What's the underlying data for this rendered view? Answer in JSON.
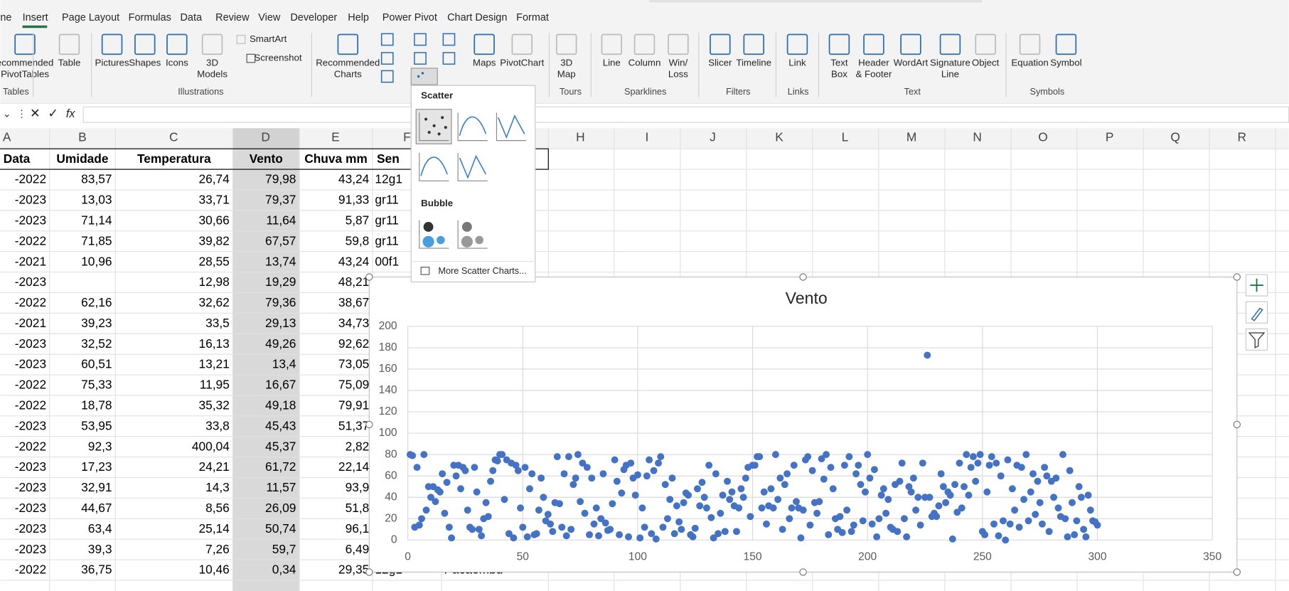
{
  "ribbon": {
    "tabs": [
      "ne",
      "Insert",
      "Page Layout",
      "Formulas",
      "Data",
      "Review",
      "View",
      "Developer",
      "Help",
      "Power Pivot",
      "Chart Design",
      "Format"
    ],
    "buttons": [
      {
        "lines": [
          "ecommended",
          "PivotTables"
        ]
      },
      {
        "lines": [
          "Table"
        ],
        "disabled": true
      },
      {
        "lines": [
          "Pictures"
        ]
      },
      {
        "lines": [
          "Shapes"
        ]
      },
      {
        "lines": [
          "Icons"
        ]
      },
      {
        "lines": [
          "3D",
          "Models"
        ],
        "disabled": true
      },
      {
        "lines": [
          "SmartArt"
        ],
        "disabled": true
      },
      {
        "lines": [
          "Screenshot"
        ]
      },
      {
        "lines": [
          "Recommended",
          "Charts"
        ]
      },
      {
        "lines": [
          "Maps"
        ]
      },
      {
        "lines": [
          "PivotChart"
        ],
        "disabled": true
      },
      {
        "lines": [
          "3D",
          "Map"
        ],
        "disabled": true
      },
      {
        "lines": [
          "Line"
        ],
        "disabled": true
      },
      {
        "lines": [
          "Column"
        ],
        "disabled": true
      },
      {
        "lines": [
          "Win/",
          "Loss"
        ],
        "disabled": true
      },
      {
        "lines": [
          "Slicer"
        ]
      },
      {
        "lines": [
          "Timeline"
        ]
      },
      {
        "lines": [
          "Link"
        ]
      },
      {
        "lines": [
          "Text",
          "Box"
        ]
      },
      {
        "lines": [
          "Header",
          "& Footer"
        ]
      },
      {
        "lines": [
          "WordArt"
        ]
      },
      {
        "lines": [
          "Signature",
          "Line"
        ]
      },
      {
        "lines": [
          "Object"
        ],
        "disabled": true
      },
      {
        "lines": [
          "Equation"
        ],
        "disabled": true
      },
      {
        "lines": [
          "Symbol"
        ]
      }
    ],
    "groups": [
      "Tables",
      "Illustrations",
      "Tours",
      "Sparklines",
      "Filters",
      "Links",
      "Text",
      "Symbols"
    ]
  },
  "formula_bar": {
    "fx": "fx"
  },
  "sheet": {
    "columns": [
      "A",
      "B",
      "C",
      "D",
      "E",
      "F",
      "H",
      "I",
      "J",
      "K",
      "L",
      "M",
      "N",
      "O",
      "P",
      "Q",
      "R"
    ],
    "header": [
      "Data",
      "Umidade",
      "Temperatura",
      "Vento",
      "Chuva mm",
      "Sen"
    ],
    "rows": [
      [
        "-2022",
        "83,57",
        "26,74",
        "79,98",
        "43,24",
        "12g1"
      ],
      [
        "-2023",
        "13,03",
        "33,71",
        "79,37",
        "91,33",
        "gr11"
      ],
      [
        "-2023",
        "71,14",
        "30,66",
        "11,64",
        "5,87",
        "gr11"
      ],
      [
        "-2022",
        "71,85",
        "39,82",
        "67,57",
        "59,8",
        "gr11"
      ],
      [
        "-2021",
        "10,96",
        "28,55",
        "13,74",
        "43,24",
        "00f1"
      ],
      [
        "-2023",
        null,
        "12,98",
        "19,29",
        "48,21"
      ],
      [
        "-2022",
        "62,16",
        "32,62",
        "79,36",
        "38,67"
      ],
      [
        "-2021",
        "39,23",
        "33,5",
        "29,13",
        "34,73"
      ],
      [
        "-2023",
        "32,52",
        "16,13",
        "49,26",
        "92,62"
      ],
      [
        "-2023",
        "60,51",
        "13,21",
        "13,4",
        "73,05"
      ],
      [
        "-2022",
        "75,33",
        "11,95",
        "16,67",
        "75,09"
      ],
      [
        "-2022",
        "18,78",
        "35,32",
        "49,18",
        "79,91"
      ],
      [
        "-2023",
        "53,95",
        "33,8",
        "45,43",
        "51,37"
      ],
      [
        "-2022",
        "92,3",
        "400,04",
        "45,37",
        "2,82"
      ],
      [
        "-2023",
        "17,23",
        "24,21",
        "61,72",
        "22,14"
      ],
      [
        "-2023",
        "32,91",
        "14,3",
        "11,57",
        "93,9"
      ],
      [
        "-2023",
        "44,67",
        "8,56",
        "26,09",
        "51,8"
      ],
      [
        "-2023",
        "63,4",
        "25,14",
        "50,74",
        "96,1"
      ],
      [
        "-2023",
        "39,3",
        "7,26",
        "59,7",
        "6,49"
      ],
      [
        "-2022",
        "36,75",
        "10,46",
        "0,34",
        "29,35",
        "12g1",
        "Pacaembu"
      ]
    ]
  },
  "dropdown": {
    "scatter": "Scatter",
    "bubble": "Bubble",
    "more": "More Scatter Charts..."
  },
  "chart_data": {
    "type": "scatter",
    "title": "Vento",
    "color": "#4472c4",
    "grid": true,
    "xlim": [
      0,
      350
    ],
    "xticks": [
      0,
      50,
      100,
      150,
      200,
      250,
      300,
      350
    ],
    "ylim": [
      0,
      200
    ],
    "yticks": [
      0,
      20,
      40,
      60,
      80,
      100,
      120,
      140,
      160,
      180,
      200
    ],
    "x": [
      1,
      2,
      3,
      4,
      5,
      6,
      7,
      8,
      9,
      10,
      11,
      12,
      13,
      14,
      15,
      16,
      17,
      18,
      19,
      20,
      21,
      22,
      23,
      24,
      25,
      26,
      27,
      28,
      29,
      30,
      31,
      32,
      33,
      34,
      35,
      36,
      37,
      38,
      39,
      40,
      41,
      42,
      43,
      44,
      45,
      46,
      47,
      48,
      49,
      50,
      51,
      52,
      53,
      54,
      55,
      56,
      57,
      58,
      59,
      60,
      61,
      62,
      63,
      64,
      65,
      66,
      67,
      68,
      69,
      70,
      71,
      72,
      73,
      74,
      75,
      76,
      77,
      78,
      79,
      80,
      81,
      82,
      83,
      84,
      85,
      86,
      87,
      88,
      89,
      90,
      91,
      92,
      93,
      94,
      95,
      96,
      97,
      98,
      99,
      100,
      101,
      102,
      103,
      104,
      105,
      106,
      107,
      108,
      109,
      110,
      111,
      112,
      113,
      114,
      115,
      116,
      117,
      118,
      119,
      120,
      121,
      122,
      123,
      124,
      125,
      126,
      127,
      128,
      129,
      130,
      131,
      132,
      133,
      134,
      135,
      136,
      137,
      138,
      139,
      140,
      141,
      142,
      143,
      144,
      145,
      146,
      147,
      148,
      149,
      150,
      151,
      152,
      153,
      154,
      155,
      156,
      157,
      158,
      159,
      160,
      161,
      162,
      163,
      164,
      165,
      166,
      167,
      168,
      169,
      170,
      171,
      172,
      173,
      174,
      175,
      176,
      177,
      178,
      179,
      180,
      181,
      182,
      183,
      184,
      185,
      186,
      187,
      188,
      189,
      190,
      191,
      192,
      193,
      194,
      195,
      196,
      197,
      198,
      199,
      200,
      201,
      202,
      203,
      204,
      205,
      206,
      207,
      208,
      209,
      210,
      211,
      212,
      213,
      214,
      215,
      216,
      217,
      218,
      219,
      220,
      221,
      222,
      223,
      224,
      225,
      226,
      227,
      228,
      229,
      230,
      231,
      232,
      233,
      234,
      235,
      236,
      237,
      238,
      239,
      240,
      241,
      242,
      243,
      244,
      245,
      246,
      247,
      248,
      249,
      250,
      251,
      252,
      253,
      254,
      255,
      256,
      257,
      258,
      259,
      260,
      261,
      262,
      263,
      264,
      265,
      266,
      267,
      268,
      269,
      270,
      271,
      272,
      273,
      274,
      275,
      276,
      277,
      278,
      279,
      280,
      281,
      282,
      283,
      284,
      285,
      286,
      287,
      288,
      289,
      290,
      291,
      292,
      293,
      294,
      295,
      296,
      297,
      298,
      299,
      300
    ],
    "values": [
      80,
      79,
      12,
      68,
      14,
      20,
      80,
      28,
      50,
      40,
      50,
      36,
      47,
      45,
      62,
      25,
      54,
      12,
      2,
      70,
      60,
      70,
      48,
      68,
      65,
      28,
      12,
      10,
      68,
      45,
      10,
      4,
      20,
      35,
      22,
      55,
      65,
      75,
      74,
      80,
      80,
      38,
      75,
      6,
      72,
      2,
      70,
      65,
      30,
      12,
      68,
      3,
      48,
      62,
      5,
      6,
      28,
      58,
      40,
      18,
      24,
      15,
      8,
      35,
      78,
      34,
      12,
      62,
      4,
      78,
      10,
      52,
      58,
      80,
      36,
      72,
      25,
      68,
      5,
      58,
      15,
      30,
      4,
      20,
      62,
      16,
      9,
      10,
      34,
      75,
      55,
      5,
      44,
      66,
      70,
      3,
      72,
      58,
      42,
      61,
      2,
      30,
      12,
      60,
      75,
      6,
      65,
      1,
      72,
      78,
      12,
      52,
      20,
      38,
      58,
      6,
      32,
      17,
      10,
      35,
      44,
      42,
      5,
      3,
      11,
      48,
      32,
      54,
      40,
      30,
      70,
      21,
      2,
      62,
      6,
      25,
      42,
      8,
      55,
      38,
      45,
      32,
      8,
      30,
      48,
      40,
      58,
      68,
      22,
      70,
      70,
      78,
      78,
      30,
      45,
      15,
      32,
      48,
      30,
      80,
      38,
      58,
      10,
      52,
      62,
      20,
      30,
      70,
      36,
      30,
      2,
      28,
      75,
      78,
      14,
      65,
      35,
      25,
      36,
      76,
      57,
      80,
      5,
      68,
      48,
      20,
      10,
      22,
      7,
      70,
      28,
      78,
      8,
      14,
      62,
      70,
      52,
      18,
      45,
      80,
      58,
      15,
      66,
      3,
      20,
      42,
      48,
      25,
      38,
      12,
      10,
      52,
      8,
      55,
      72,
      20,
      3,
      50,
      45,
      58,
      28,
      40,
      14,
      72,
      40,
      173,
      40,
      22,
      25,
      22,
      32,
      62,
      50,
      35,
      45,
      42,
      1,
      52,
      26,
      72,
      30,
      50,
      80,
      42,
      68,
      78,
      55,
      72,
      80,
      8,
      5,
      45,
      70,
      78,
      15,
      72,
      4,
      60,
      18,
      0,
      75,
      15,
      48,
      28,
      70,
      12,
      68,
      38,
      80,
      18,
      45,
      62,
      24,
      55,
      35,
      15,
      68,
      60,
      8,
      55,
      40,
      58,
      30,
      22,
      80,
      20,
      3,
      65,
      35,
      5,
      18,
      50,
      40,
      10,
      3,
      42,
      28,
      18,
      17,
      14
    ]
  }
}
